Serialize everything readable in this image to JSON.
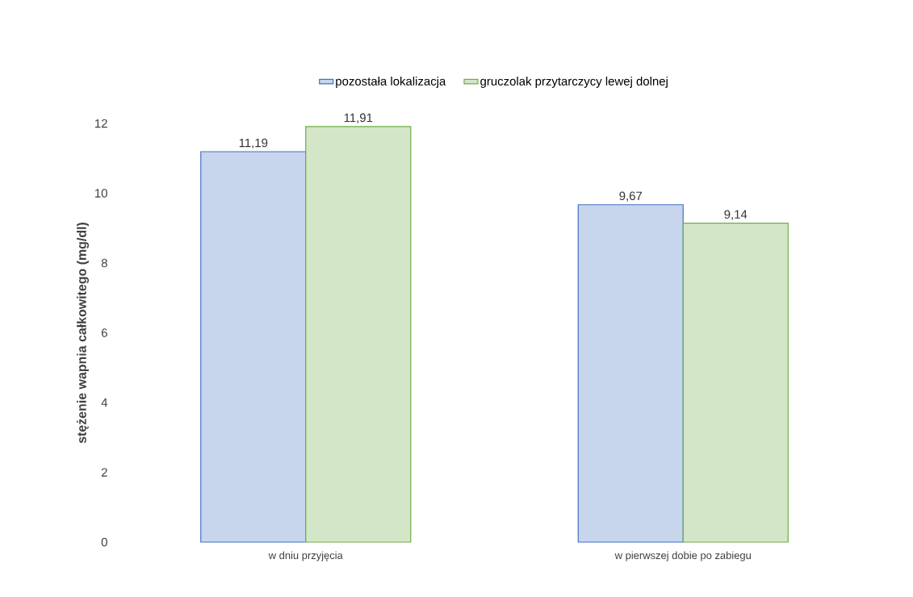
{
  "chart_data": {
    "type": "bar",
    "ylabel": "stężenie wapnia całkowitego  (mg/dl)",
    "categories": [
      "w dniu przyjęcia",
      "w pierwszej dobie po zabiegu"
    ],
    "series": [
      {
        "name": "pozostała lokalizacja",
        "color": "#4472c4",
        "values": [
          11.19,
          9.67
        ],
        "value_labels": [
          "11,19",
          "9,67"
        ]
      },
      {
        "name": "gruczolak przytarczycy lewej dolnej",
        "color": "#70ad47",
        "values": [
          11.91,
          9.14
        ],
        "value_labels": [
          "11,91",
          "9,14"
        ]
      }
    ],
    "ylim": [
      0,
      12
    ],
    "yticks": [
      0,
      2,
      4,
      6,
      8,
      10,
      12
    ],
    "grid": false,
    "legend": "top"
  }
}
